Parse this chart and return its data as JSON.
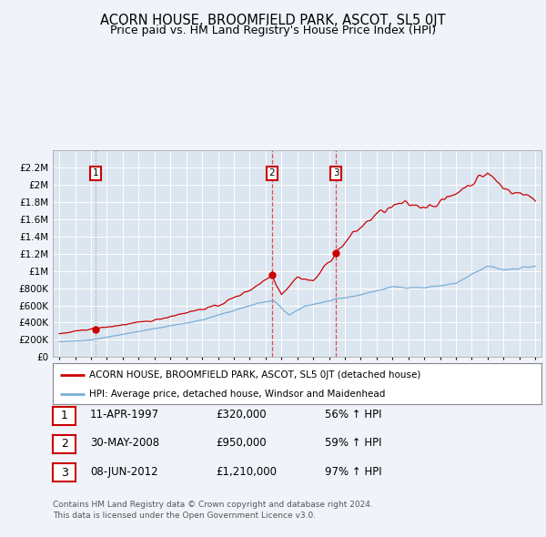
{
  "title": "ACORN HOUSE, BROOMFIELD PARK, ASCOT, SL5 0JT",
  "subtitle": "Price paid vs. HM Land Registry's House Price Index (HPI)",
  "title_fontsize": 10.5,
  "subtitle_fontsize": 9,
  "background_color": "#f0f4fa",
  "plot_bg_color": "#dce6f0",
  "red_line_color": "#cc0000",
  "blue_line_color": "#7aaed6",
  "sale_marker_color": "#cc0000",
  "dashed_line_color_1": "#999999",
  "dashed_line_color_23": "#dd3333",
  "ylim": [
    0,
    2400000
  ],
  "yticks": [
    0,
    200000,
    400000,
    600000,
    800000,
    1000000,
    1200000,
    1400000,
    1600000,
    1800000,
    2000000,
    2200000
  ],
  "ytick_labels": [
    "£0",
    "£200K",
    "£400K",
    "£600K",
    "£800K",
    "£1M",
    "£1.2M",
    "£1.4M",
    "£1.6M",
    "£1.8M",
    "£2M",
    "£2.2M"
  ],
  "xlim_start": 1994.6,
  "xlim_end": 2025.4,
  "sales": [
    {
      "year": 1997.28,
      "price": 320000,
      "label": "1",
      "dashed": "grey"
    },
    {
      "year": 2008.41,
      "price": 950000,
      "label": "2",
      "dashed": "red"
    },
    {
      "year": 2012.43,
      "price": 1210000,
      "label": "3",
      "dashed": "red"
    }
  ],
  "legend_line1": "ACORN HOUSE, BROOMFIELD PARK, ASCOT, SL5 0JT (detached house)",
  "legend_line2": "HPI: Average price, detached house, Windsor and Maidenhead",
  "table_rows": [
    {
      "num": "1",
      "date": "11-APR-1997",
      "price": "£320,000",
      "change": "56% ↑ HPI"
    },
    {
      "num": "2",
      "date": "30-MAY-2008",
      "price": "£950,000",
      "change": "59% ↑ HPI"
    },
    {
      "num": "3",
      "date": "08-JUN-2012",
      "price": "£1,210,000",
      "change": "97% ↑ HPI"
    }
  ],
  "footer1": "Contains HM Land Registry data © Crown copyright and database right 2024.",
  "footer2": "This data is licensed under the Open Government Licence v3.0."
}
